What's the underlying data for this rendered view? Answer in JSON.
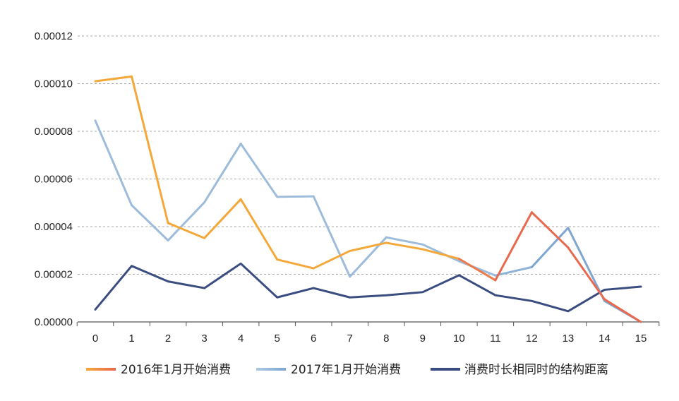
{
  "chart_data": {
    "type": "line",
    "title": "",
    "xlabel": "",
    "ylabel": "",
    "x": [
      0,
      1,
      2,
      3,
      4,
      5,
      6,
      7,
      8,
      9,
      10,
      11,
      12,
      13,
      14,
      15
    ],
    "x_tick_labels": [
      "0",
      "1",
      "2",
      "3",
      "4",
      "5",
      "6",
      "7",
      "8",
      "9",
      "10",
      "11",
      "12",
      "13",
      "14",
      "15"
    ],
    "ylim": [
      0,
      0.00012
    ],
    "y_ticks": [
      0,
      2e-05,
      4e-05,
      6e-05,
      8e-05,
      0.0001,
      0.00012
    ],
    "y_tick_labels": [
      "0.00000",
      "0.00002",
      "0.00004",
      "0.00006",
      "0.00008",
      "0.00010",
      "0.00012"
    ],
    "grid": "horizontal dashed",
    "legend_position": "bottom",
    "series": [
      {
        "name": "2016年1月开始消费",
        "color": "#f5a83a",
        "segment_colors": [
          "#f5a83a",
          "#f5a83a",
          "#f5a83a",
          "#f5a83a",
          "#f5a83a",
          "#f5a83a",
          "#f5a83a",
          "#f5a83a",
          "#f5a83a",
          "#f5a83a",
          "#ec7a4a",
          "#e8694e",
          "#e8694e",
          "#e8694e",
          "#e8694e"
        ],
        "legend_gradient": [
          "#f5a83a",
          "#e8694e"
        ],
        "values": [
          0.000101,
          0.000103,
          4.15e-05,
          3.52e-05,
          5.15e-05,
          2.62e-05,
          2.25e-05,
          2.98e-05,
          3.32e-05,
          3.05e-05,
          2.65e-05,
          1.75e-05,
          4.6e-05,
          3.12e-05,
          9.5e-06,
          0.0
        ]
      },
      {
        "name": "2017年1月开始消费",
        "color": "#9dbcdb",
        "segment_colors": [
          "#9dbcdb",
          "#9dbcdb",
          "#9dbcdb",
          "#9dbcdb",
          "#9dbcdb",
          "#9dbcdb",
          "#9dbcdb",
          "#9dbcdb",
          "#9dbcdb",
          "#9dbcdb",
          "#9dbcdb",
          "#8fb3d6",
          "#7ea6d1",
          "#7ea6d1",
          "#7ea6d1"
        ],
        "legend_gradient": [
          "#aec9e3",
          "#7ea6d1"
        ],
        "values": [
          8.45e-05,
          4.9e-05,
          3.42e-05,
          5.02e-05,
          7.48e-05,
          5.25e-05,
          5.27e-05,
          1.9e-05,
          3.55e-05,
          3.25e-05,
          2.55e-05,
          1.95e-05,
          2.3e-05,
          3.95e-05,
          8.8e-06,
          0.0
        ]
      },
      {
        "name": "消费时长相同时的结构距离",
        "color": "#3b4d80",
        "values": [
          5.2e-06,
          2.35e-05,
          1.7e-05,
          1.42e-05,
          2.45e-05,
          1.03e-05,
          1.42e-05,
          1.03e-05,
          1.12e-05,
          1.25e-05,
          1.96e-05,
          1.12e-05,
          8.8e-06,
          4.5e-06,
          1.35e-05,
          1.48e-05
        ]
      }
    ]
  }
}
